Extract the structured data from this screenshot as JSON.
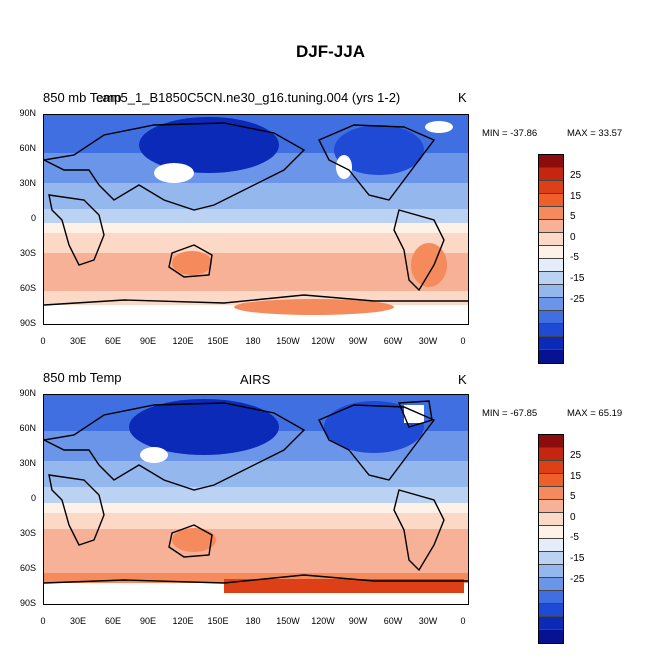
{
  "title": "DJF-JJA",
  "panels": [
    {
      "id": "model",
      "left_label": "850 mb Temp",
      "center_label": "cam5_1_B1850C5CN.ne30_g16.tuning.004 (yrs 1-2)",
      "units": "K",
      "min_text": "MIN = -37.86",
      "max_text": "MAX =  33.57"
    },
    {
      "id": "obs",
      "left_label": "850 mb Temp",
      "center_label": "AIRS",
      "units": "K",
      "min_text": "MIN = -67.85",
      "max_text": "MAX =  65.19"
    }
  ],
  "lat_ticks": [
    "90N",
    "60N",
    "30N",
    "0",
    "30S",
    "60S",
    "90S"
  ],
  "lon_ticks": [
    "0",
    "30E",
    "60E",
    "90E",
    "120E",
    "150E",
    "180",
    "150W",
    "120W",
    "90W",
    "60W",
    "30W",
    "0"
  ],
  "colorbar": {
    "colors": [
      "#8c0d0d",
      "#c5260f",
      "#dd3f16",
      "#ef5f2a",
      "#f58a5c",
      "#f7b197",
      "#fbd9c6",
      "#fdf1e8",
      "#e4edf9",
      "#bcd2f2",
      "#94b8ee",
      "#6b95e8",
      "#3f6fe0",
      "#1f4ad6",
      "#0c2ab8",
      "#06128f"
    ],
    "labels": [
      "25",
      "15",
      "5",
      "0",
      "-5",
      "-15",
      "-25"
    ]
  },
  "map_colors": {
    "deep_blue": "#0c2ab8",
    "blue": "#3f6fe0",
    "mid_blue": "#6b95e8",
    "light_blue": "#bcd2f2",
    "pale": "#fdf1e8",
    "peach": "#fbd9c6",
    "salmon": "#f7b197",
    "orange": "#f58a5c",
    "red": "#dd3f16",
    "missing": "#ffffff"
  }
}
